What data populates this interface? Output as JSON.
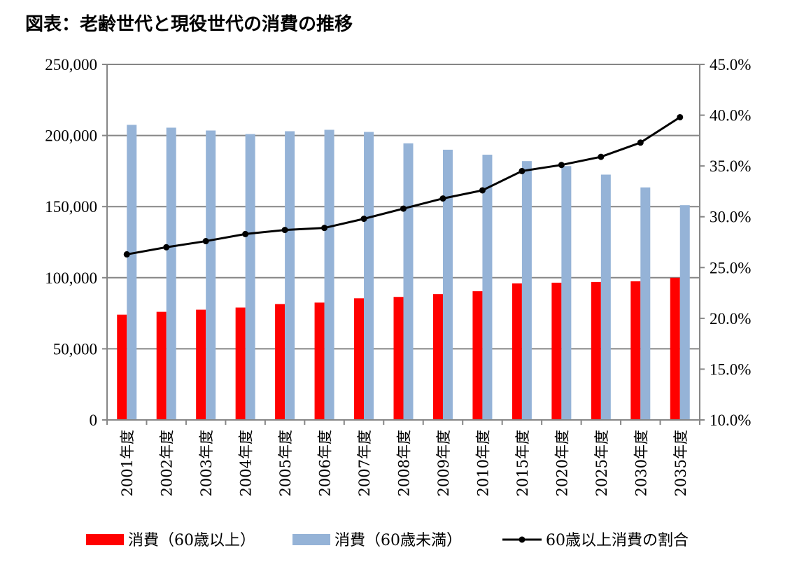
{
  "title": "図表：老齢世代と現役世代の消費の推移",
  "chart_data": {
    "type": "bar",
    "title": "図表：老齢世代と現役世代の消費の推移",
    "categories": [
      "2001年度",
      "2002年度",
      "2003年度",
      "2004年度",
      "2005年度",
      "2006年度",
      "2007年度",
      "2008年度",
      "2009年度",
      "2010年度",
      "2015年度",
      "2020年度",
      "2025年度",
      "2030年度",
      "2035年度"
    ],
    "series": [
      {
        "name": "消費（60歳以上）",
        "type": "bar",
        "axis": "left",
        "color": "#ff0000",
        "values": [
          74000,
          76000,
          77500,
          79000,
          81500,
          82500,
          85500,
          86500,
          88500,
          90500,
          96000,
          96500,
          97000,
          97500,
          100000
        ]
      },
      {
        "name": "消費（60歳未満）",
        "type": "bar",
        "axis": "left",
        "color": "#95b3d7",
        "values": [
          207500,
          205500,
          203500,
          201000,
          203000,
          204000,
          202500,
          194500,
          190000,
          186500,
          182000,
          178500,
          172500,
          163500,
          151000
        ]
      },
      {
        "name": "60歳以上消費の割合",
        "type": "line",
        "axis": "right",
        "color": "#000000",
        "values": [
          26.3,
          27.0,
          27.6,
          28.3,
          28.7,
          28.9,
          29.8,
          30.8,
          31.8,
          32.6,
          34.5,
          35.1,
          35.9,
          37.3,
          39.8
        ]
      }
    ],
    "left_axis": {
      "ylim": [
        0,
        250000
      ],
      "ticks": [
        "0",
        "50,000",
        "100,000",
        "150,000",
        "200,000",
        "250,000"
      ],
      "tick_values": [
        0,
        50000,
        100000,
        150000,
        200000,
        250000
      ]
    },
    "right_axis": {
      "ylim": [
        10,
        45
      ],
      "ticks": [
        "10.0%",
        "15.0%",
        "20.0%",
        "25.0%",
        "30.0%",
        "35.0%",
        "40.0%",
        "45.0%"
      ],
      "tick_values": [
        10,
        15,
        20,
        25,
        30,
        35,
        40,
        45
      ]
    },
    "grid": true,
    "legend_position": "bottom"
  }
}
